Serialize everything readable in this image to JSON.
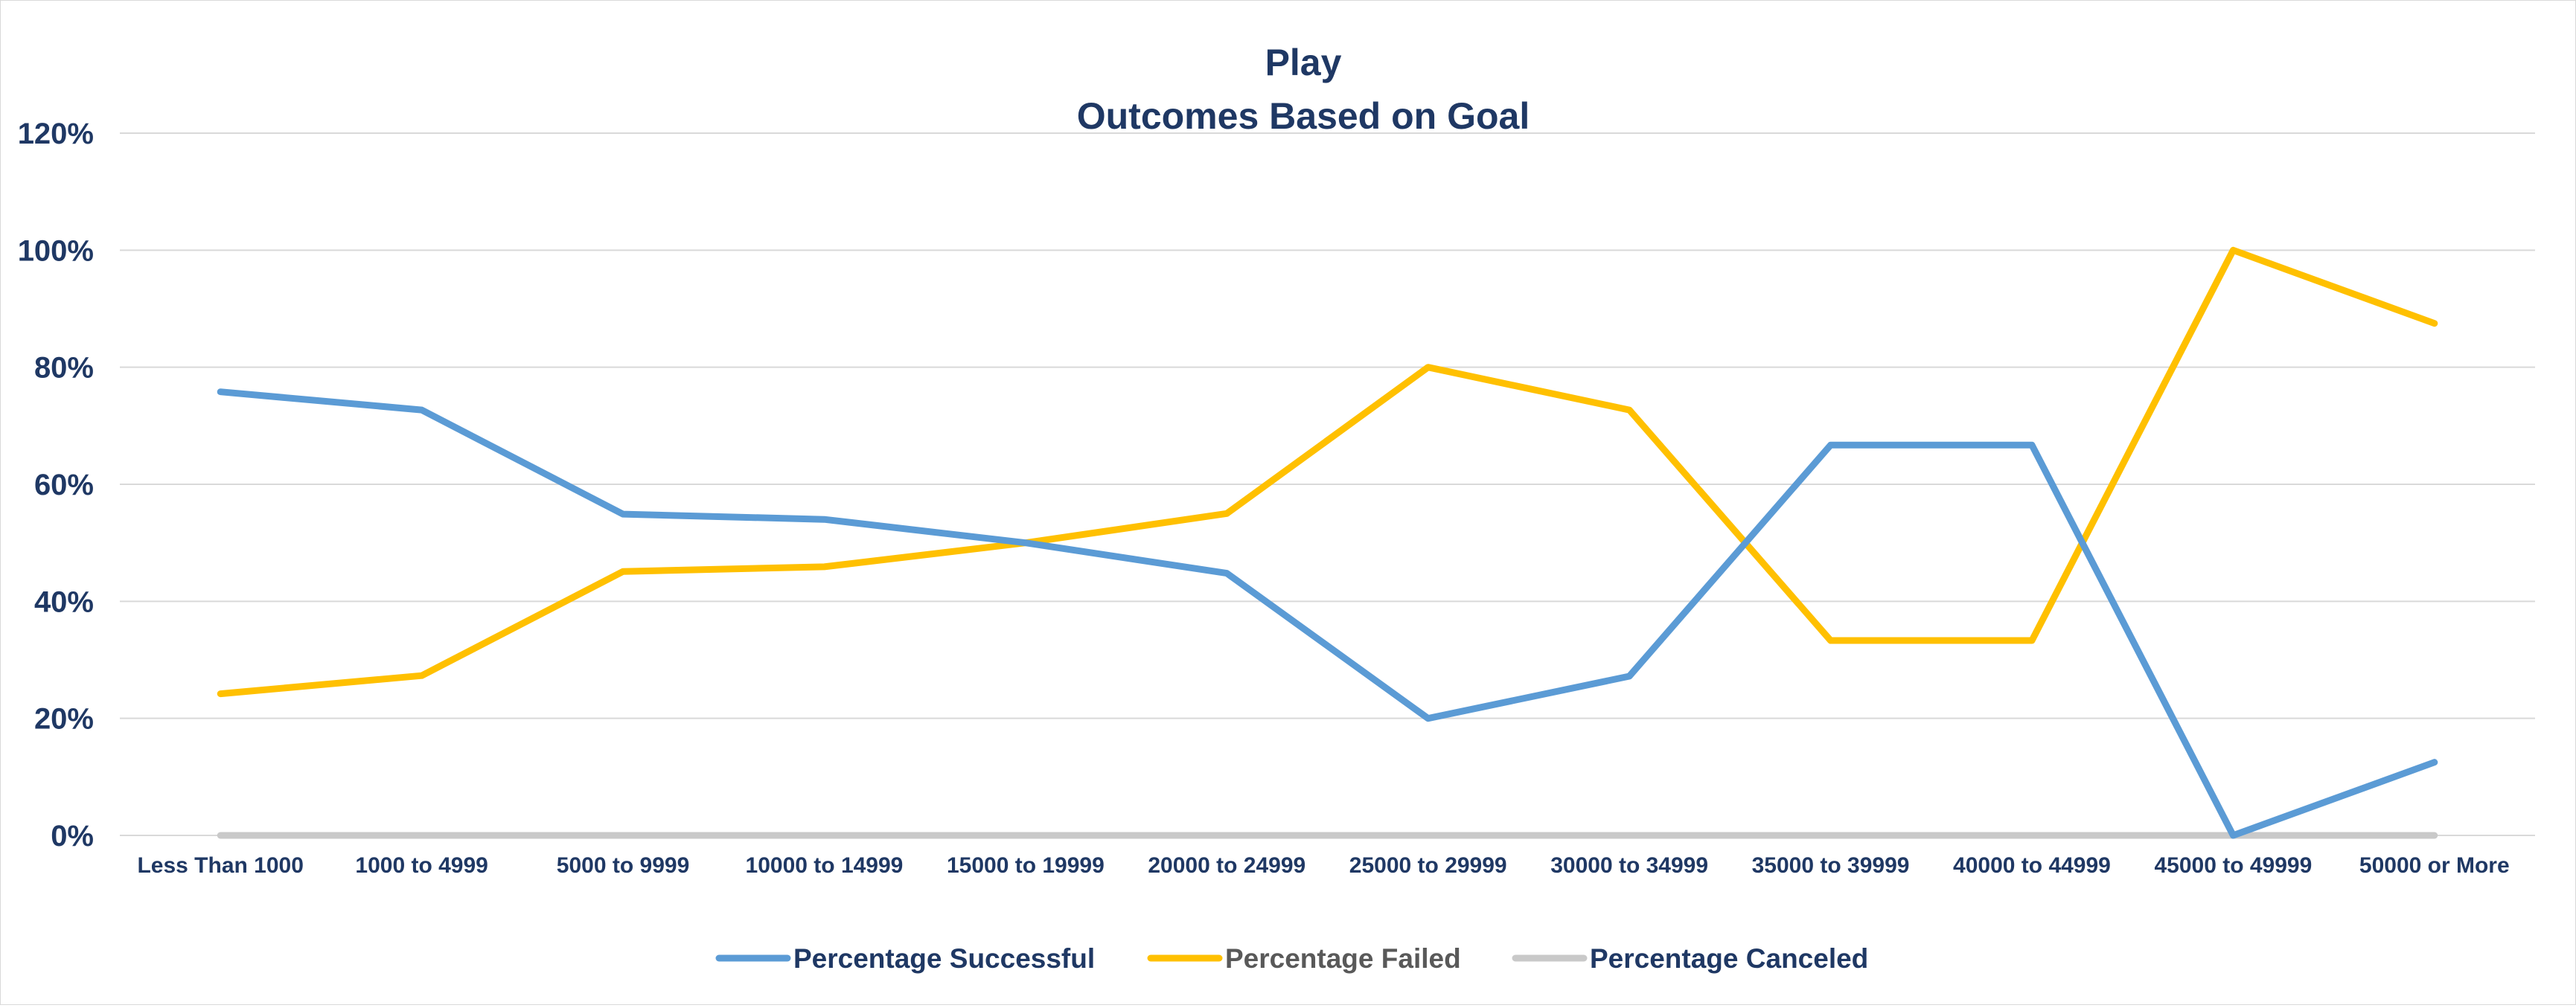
{
  "chart_data": {
    "type": "line",
    "title": "Play",
    "subtitle": "Outcomes Based on Goal",
    "xlabel": "",
    "ylabel": "",
    "categories": [
      "Less Than 1000",
      "1000 to 4999",
      "5000 to 9999",
      "10000 to 14999",
      "15000 to 19999",
      "20000 to 24999",
      "25000 to 29999",
      "30000 to 34999",
      "35000 to 39999",
      "40000 to 44999",
      "45000 to 49999",
      "50000 or More"
    ],
    "ylim": [
      0,
      120
    ],
    "yticks": [
      "0%",
      "20%",
      "40%",
      "60%",
      "80%",
      "100%",
      "120%"
    ],
    "grid": true,
    "legend_position": "bottom",
    "series": [
      {
        "name": "Percentage Successful",
        "color": "#5b9bd5",
        "values": [
          75.8,
          72.7,
          54.9,
          54.0,
          50.0,
          44.8,
          20.0,
          27.2,
          66.7,
          66.7,
          0.0,
          12.5
        ]
      },
      {
        "name": "Percentage Failed",
        "color": "#ffc000",
        "values": [
          24.2,
          27.3,
          45.1,
          45.9,
          50.0,
          55.0,
          80.0,
          72.7,
          33.3,
          33.3,
          100.0,
          87.5
        ]
      },
      {
        "name": "Percentage Canceled",
        "color": "#c9c9c9",
        "values": [
          0,
          0,
          0,
          0,
          0,
          0,
          0,
          0,
          0,
          0,
          0,
          0
        ]
      }
    ]
  }
}
